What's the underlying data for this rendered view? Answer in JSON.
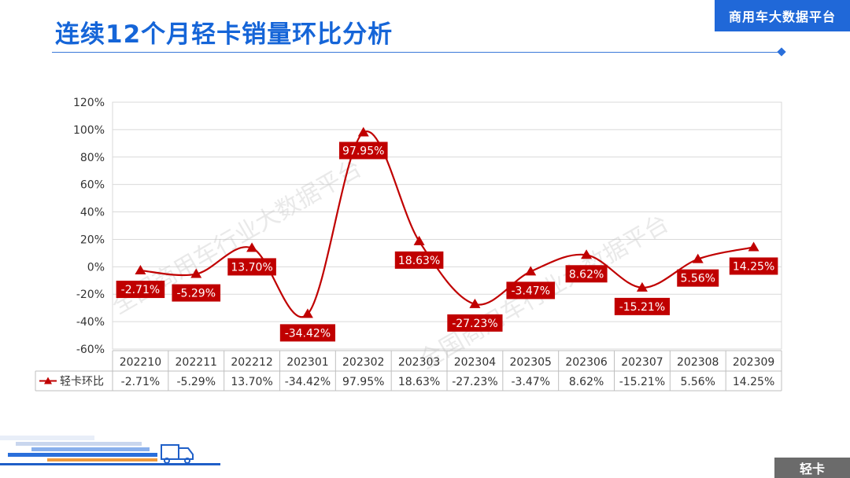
{
  "page": {
    "title": "连续12个月轻卡销量环比分析",
    "brand": "商用车大数据平台",
    "corner_tag": "轻卡",
    "watermark": "全国商用车行业大数据平台"
  },
  "colors": {
    "title": "#1565d8",
    "brand_bg": "#2068d8",
    "series": "#c00000",
    "label_bg": "#c00000",
    "corner_bg": "#6b6b6b"
  },
  "chart_data": {
    "type": "line",
    "categories": [
      "202210",
      "202211",
      "202212",
      "202301",
      "202302",
      "202303",
      "202304",
      "202305",
      "202306",
      "202307",
      "202308",
      "202309"
    ],
    "series": [
      {
        "name": "轻卡环比",
        "values": [
          -2.71,
          -5.29,
          13.7,
          -34.42,
          97.95,
          18.63,
          -27.23,
          -3.47,
          8.62,
          -15.21,
          5.56,
          14.25
        ],
        "labels": [
          "-2.71%",
          "-5.29%",
          "13.70%",
          "-34.42%",
          "97.95%",
          "18.63%",
          "-27.23%",
          "-3.47%",
          "8.62%",
          "-15.21%",
          "5.56%",
          "14.25%"
        ]
      }
    ],
    "yticks": [
      "120%",
      "100%",
      "80%",
      "60%",
      "40%",
      "20%",
      "0%",
      "-20%",
      "-40%",
      "-60%"
    ],
    "ylim": [
      -60,
      120
    ],
    "marker": "triangle",
    "smooth": true,
    "data_table": true,
    "grid": true
  }
}
